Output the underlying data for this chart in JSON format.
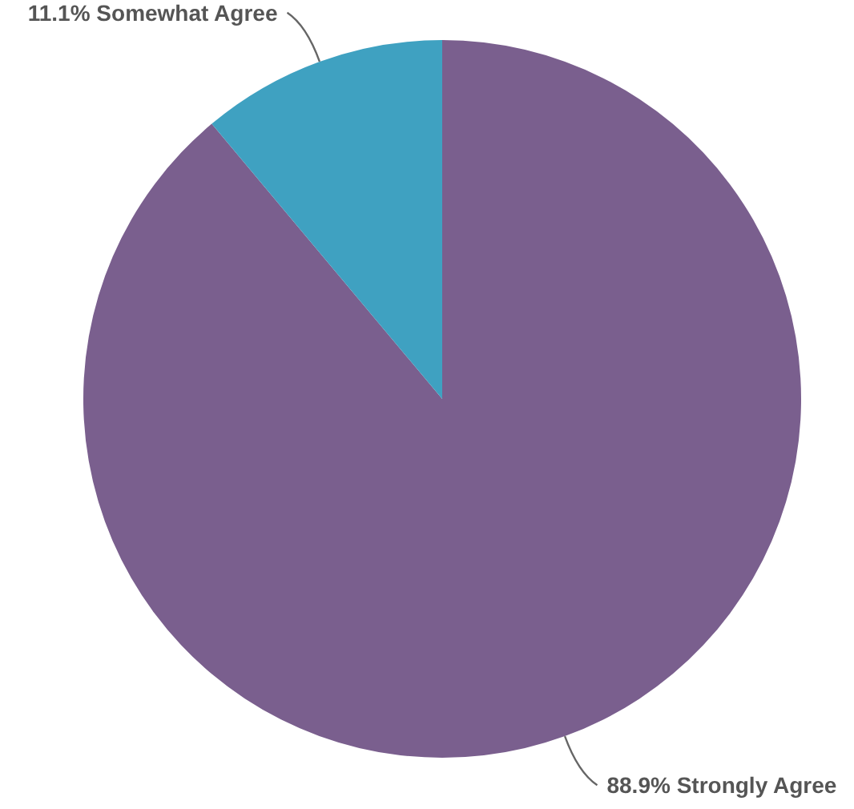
{
  "chart_data": {
    "type": "pie",
    "categories": [
      "Strongly Agree",
      "Somewhat Agree"
    ],
    "values": [
      88.9,
      11.1
    ],
    "value_labels": [
      "88.9%",
      "11.1%"
    ],
    "colors": [
      "#7a5f8e",
      "#3fa1c1"
    ]
  }
}
